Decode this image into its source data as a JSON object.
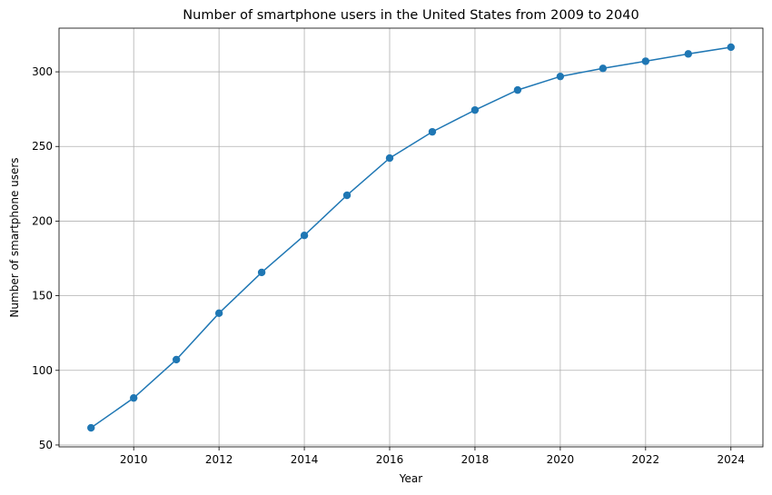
{
  "chart_data": {
    "type": "line",
    "title": "Number of smartphone users in the United States from 2009 to 2040",
    "xlabel": "Year",
    "ylabel": "Number of smartphone users",
    "x": [
      2009,
      2010,
      2011,
      2012,
      2013,
      2014,
      2015,
      2016,
      2017,
      2018,
      2019,
      2020,
      2021,
      2022,
      2023,
      2024
    ],
    "series": [
      {
        "values": [
          61.5,
          81.5,
          107.2,
          138.3,
          165.6,
          190.4,
          217.3,
          242.2,
          259.8,
          274.4,
          287.8,
          296.9,
          302.3,
          307.1,
          312.0,
          316.5
        ],
        "color": "#1f77b4"
      }
    ],
    "xlim": [
      2008.25,
      2024.75
    ],
    "ylim": [
      48.75,
      329.25
    ],
    "xticks": [
      2010,
      2012,
      2014,
      2016,
      2018,
      2020,
      2022,
      2024
    ],
    "yticks": [
      50,
      100,
      150,
      200,
      250,
      300
    ],
    "grid": true,
    "legend": false
  }
}
